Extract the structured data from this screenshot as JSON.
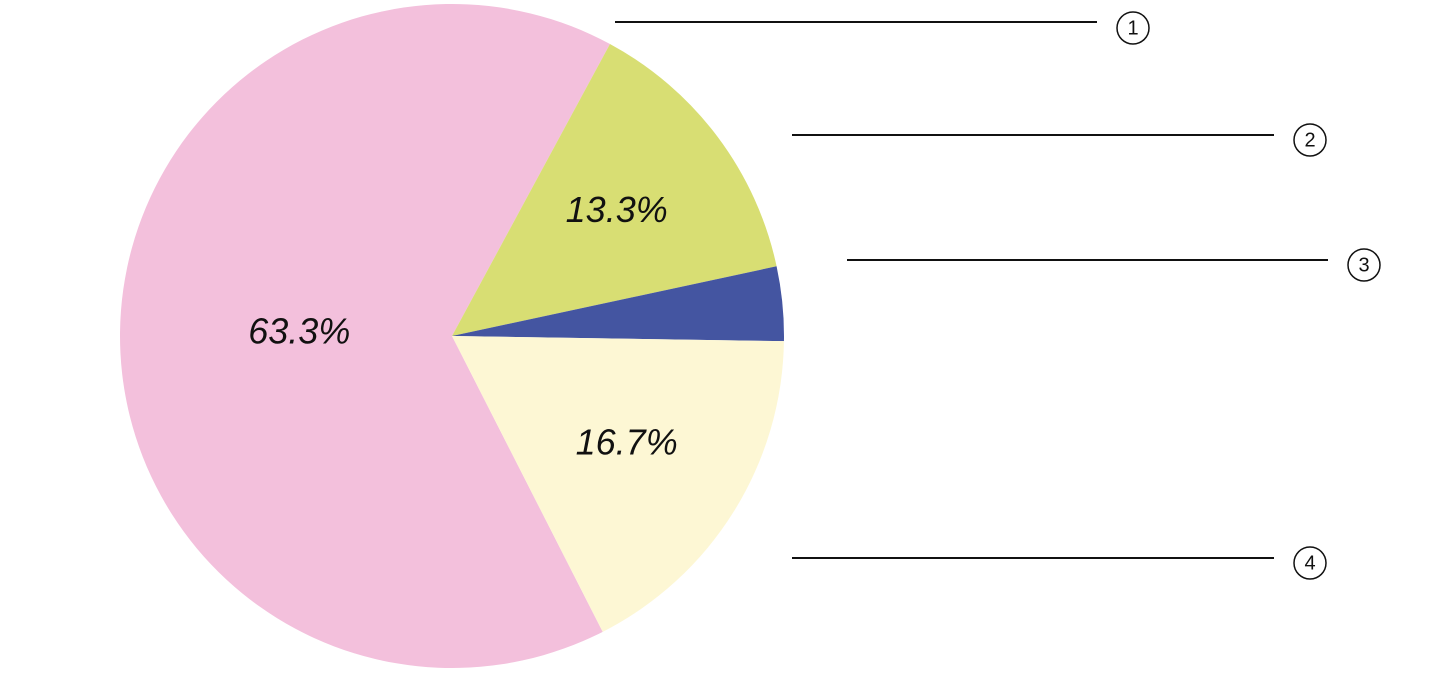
{
  "chart_data": {
    "type": "pie",
    "categories": [
      "1",
      "2",
      "3",
      "4"
    ],
    "values": [
      63.3,
      13.3,
      3.5,
      16.7
    ],
    "value_labels": [
      "63.3%",
      "13.3%",
      null,
      "16.7%"
    ],
    "colors": [
      "#f3c0dc",
      "#d8de73",
      "#4455a1",
      "#fdf7d4"
    ]
  }
}
